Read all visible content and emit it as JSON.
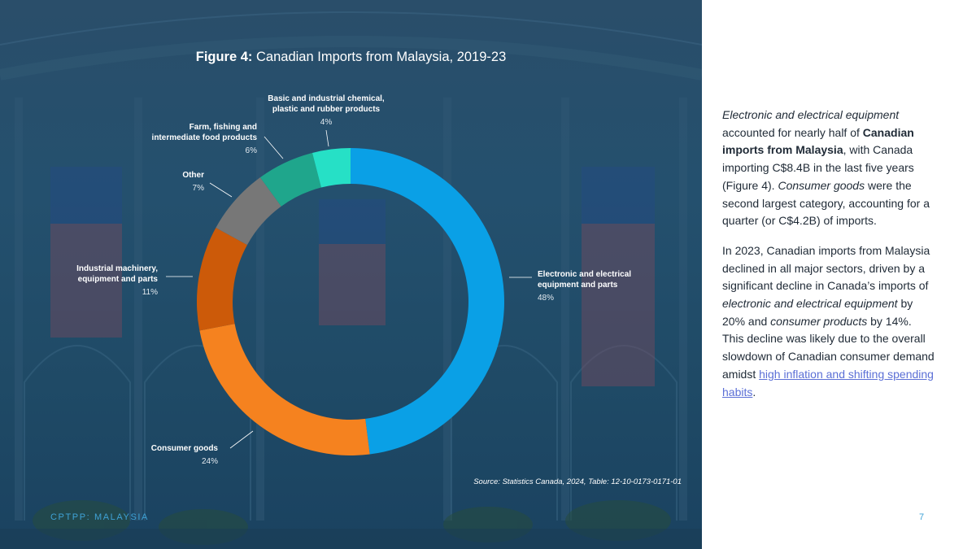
{
  "chart_data": {
    "type": "pie",
    "style": "donut",
    "title_prefix": "Figure 4:",
    "title": "Canadian Imports from Malaysia, 2019-23",
    "slices": [
      {
        "label": "Electronic and electrical equipment and parts",
        "value": 48,
        "pct_label": "48%",
        "color": "#0aa0e6"
      },
      {
        "label": "Consumer goods",
        "value": 24,
        "pct_label": "24%",
        "color": "#f5821f"
      },
      {
        "label": "Industrial machinery, equipment and parts",
        "value": 11,
        "pct_label": "11%",
        "color": "#cc5a09"
      },
      {
        "label": "Other",
        "value": 7,
        "pct_label": "7%",
        "color": "#777777"
      },
      {
        "label": "Farm, fishing and intermediate food products",
        "value": 6,
        "pct_label": "6%",
        "color": "#1fa68c"
      },
      {
        "label": "Basic and industrial chemical, plastic and rubber products",
        "value": 4,
        "pct_label": "4%",
        "color": "#26e0c6"
      }
    ],
    "source": "Source: Statistics Canada, 2024, Table: 12-10-0173-0171-01"
  },
  "labels": {
    "electronic": {
      "line1": "Electronic and electrical",
      "line2": "equipment and parts",
      "pct": "48%"
    },
    "consumer": {
      "line1": "Consumer goods",
      "pct": "24%"
    },
    "industrial": {
      "line1": "Industrial machinery,",
      "line2": "equipment and parts",
      "pct": "11%"
    },
    "other": {
      "line1": "Other",
      "pct": "7%"
    },
    "farm": {
      "line1": "Farm, fishing and",
      "line2": "intermediate food products",
      "pct": "6%"
    },
    "chemical": {
      "line1": "Basic and industrial chemical,",
      "line2": "plastic and rubber products",
      "pct": "4%"
    }
  },
  "footer": {
    "label": "CPTPP: MALAYSIA",
    "page": "7"
  },
  "body": {
    "p1_s1": "Electronic and electrical equipment",
    "p1_s2": " accounted for nearly half of ",
    "p1_s3": "Canadian imports from Malaysia",
    "p1_s4": ", with Canada importing C$8.4B in the last five years (Figure 4). ",
    "p1_s5": "Consumer goods",
    "p1_s6": " were the second largest category, accounting for a quarter (or C$4.2B) of imports.",
    "p2_s1": "In 2023, Canadian imports from Malaysia declined in all major sectors, driven by a significant decline in Canada’s imports of ",
    "p2_s2": "electronic and electrical equipment",
    "p2_s3": " by 20% and ",
    "p2_s4": "consumer products",
    "p2_s5": " by 14%. This decline was likely due to the overall slowdown of Canadian consumer demand amidst ",
    "p2_link": "high inflation and shifting spending habits",
    "p2_s6": "."
  }
}
